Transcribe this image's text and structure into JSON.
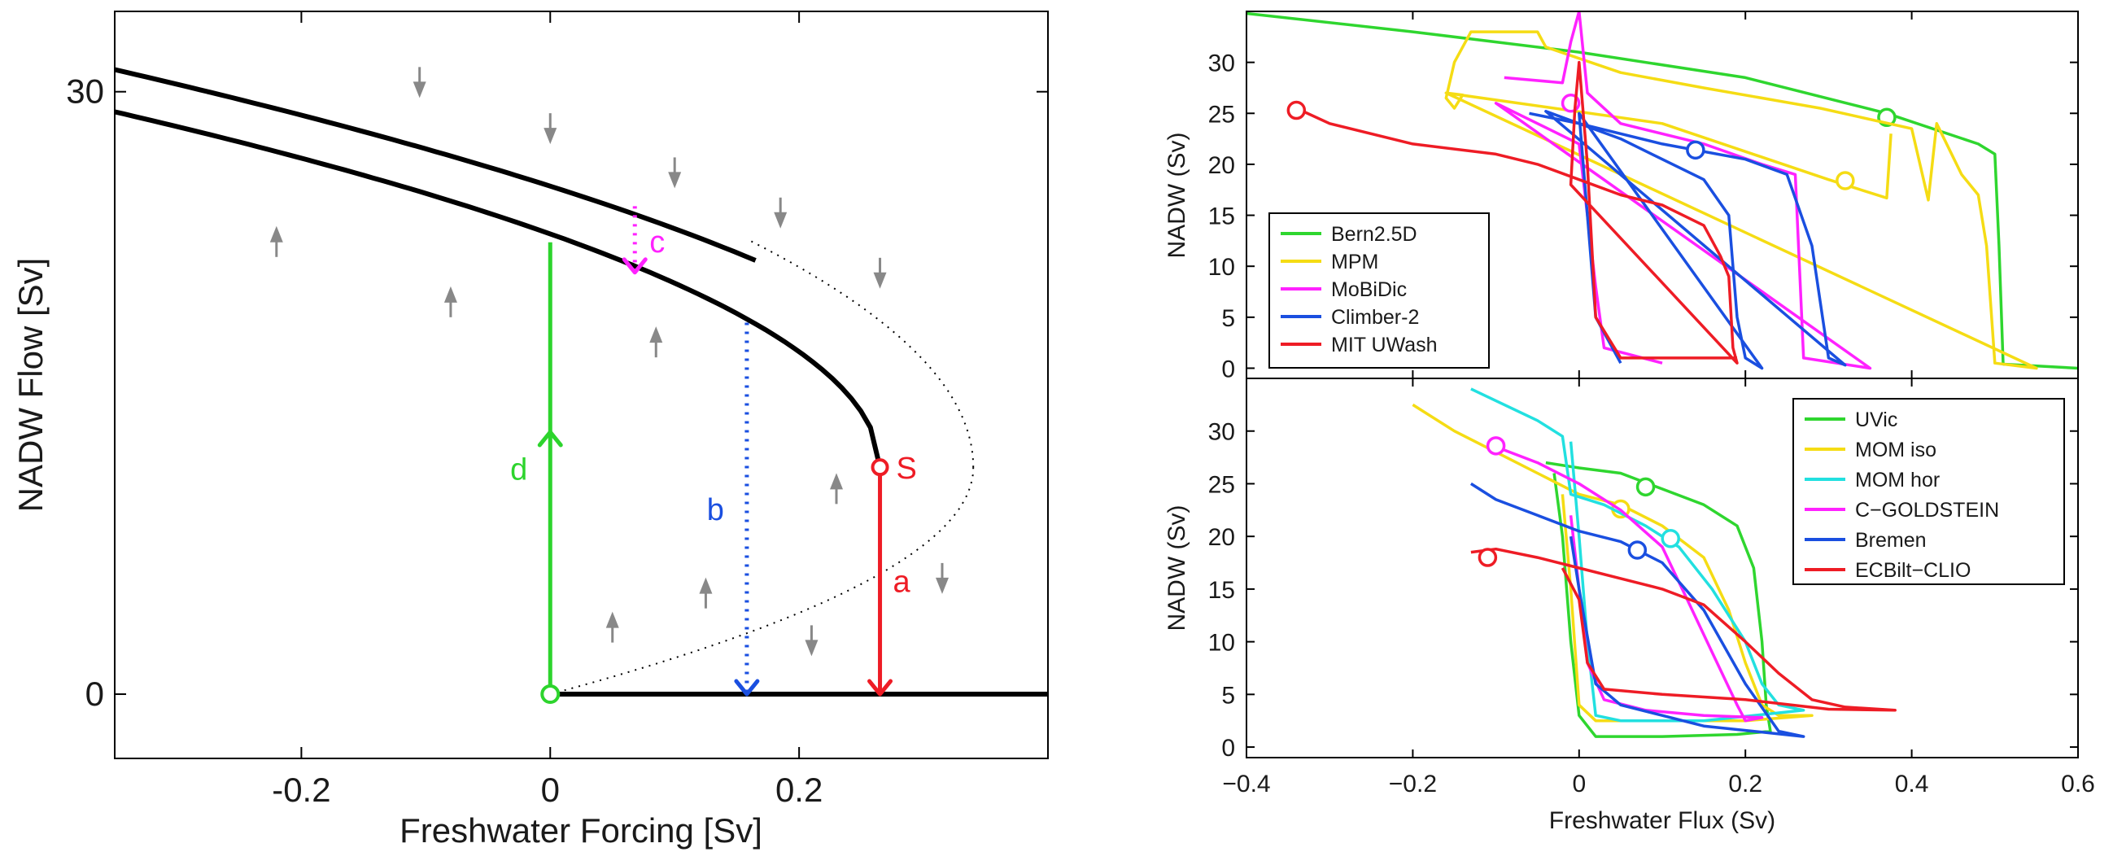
{
  "chart_data": [
    {
      "type": "line",
      "xlabel": "Freshwater Forcing [Sv]",
      "ylabel": "NADW Flow [Sv]",
      "xlim": [
        -0.35,
        0.4
      ],
      "ylim": [
        -3.2,
        34
      ],
      "xticks": [
        -0.2,
        0,
        0.2
      ],
      "xticklabels": [
        "-0.2",
        "0",
        "0.2"
      ],
      "yticks": [
        0,
        30
      ],
      "yticklabels": [
        "0",
        "30"
      ],
      "stable_upper_branch": {
        "x_start": -0.35,
        "x_end": 0.265,
        "y_at_x_start": 29,
        "y_at_saddle": 11.3
      },
      "stable_lower_branch": {
        "x_start": 0.0,
        "x_end": 0.4,
        "y": 0
      },
      "unstable_branch": {
        "from": [
          0.0,
          0
        ],
        "turning_point": [
          0.34,
          11.3
        ],
        "style": "dotted"
      },
      "upper_offset_branch": {
        "x_start": -0.35,
        "x_end": 0.165,
        "y_at_x_start": 31.1,
        "y_at_x_end": 21.6
      },
      "saddle_point": {
        "label": "S",
        "x": 0.265,
        "y": 11.3,
        "color": "#ee1c25"
      },
      "origin_point": {
        "x": 0.0,
        "y": 0,
        "color": "#2dd42d"
      },
      "transitions": [
        {
          "label": "a",
          "x": 0.265,
          "from": 11.3,
          "to": 0,
          "style": "solid",
          "color": "#ee1c25"
        },
        {
          "label": "b",
          "x": 0.158,
          "from": 18.5,
          "to": 0,
          "style": "dotted",
          "color": "#1a4fe0"
        },
        {
          "label": "c",
          "x": 0.068,
          "from": 24.3,
          "to": 21.0,
          "style": "dotted",
          "color": "#ff22ff"
        },
        {
          "label": "d",
          "x": 0.0,
          "from": 0,
          "to": 22.5,
          "style": "solid",
          "color": "#2dd42d"
        }
      ],
      "grey_arrows": [
        {
          "x": -0.105,
          "y": 30.5,
          "dir": "down"
        },
        {
          "x": 0.0,
          "y": 28.2,
          "dir": "down"
        },
        {
          "x": 0.1,
          "y": 26.0,
          "dir": "down"
        },
        {
          "x": 0.185,
          "y": 24.0,
          "dir": "down"
        },
        {
          "x": 0.265,
          "y": 21.0,
          "dir": "down"
        },
        {
          "x": 0.315,
          "y": 5.8,
          "dir": "down"
        },
        {
          "x": 0.21,
          "y": 2.7,
          "dir": "down"
        },
        {
          "x": -0.22,
          "y": 22.5,
          "dir": "up"
        },
        {
          "x": -0.08,
          "y": 19.5,
          "dir": "up"
        },
        {
          "x": 0.085,
          "y": 17.5,
          "dir": "up"
        },
        {
          "x": 0.23,
          "y": 10.2,
          "dir": "up"
        },
        {
          "x": 0.125,
          "y": 5.0,
          "dir": "up"
        },
        {
          "x": 0.05,
          "y": 3.3,
          "dir": "up"
        }
      ]
    },
    {
      "type": "line",
      "xlabel": "",
      "ylabel": "NADW (Sv)",
      "xlim": [
        -0.4,
        0.6
      ],
      "ylim": [
        -1,
        35
      ],
      "xticks": [
        -0.4,
        -0.2,
        0,
        0.2,
        0.4,
        0.6
      ],
      "yticks": [
        0,
        5,
        10,
        15,
        20,
        25,
        30
      ],
      "yticklabels": [
        "0",
        "5",
        "10",
        "15",
        "20",
        "25",
        "30"
      ],
      "legend_position": "bottom-left",
      "series": [
        {
          "name": "Bern2.5D",
          "color": "#2fd62f",
          "points": [
            [
              -0.4,
              34.8
            ],
            [
              -0.2,
              33
            ],
            [
              0,
              31
            ],
            [
              0.2,
              28.5
            ],
            [
              0.37,
              25
            ],
            [
              0.48,
              22
            ],
            [
              0.5,
              21
            ],
            [
              0.505,
              12
            ],
            [
              0.51,
              0.4
            ],
            [
              0.6,
              0
            ]
          ],
          "marker": [
            0.37,
            24.6
          ]
        },
        {
          "name": "MPM",
          "color": "#f5dc14",
          "points": [
            [
              -0.16,
              27
            ],
            [
              -0.14,
              26.8
            ],
            [
              -0.15,
              25.5
            ],
            [
              -0.16,
              26.5
            ],
            [
              -0.15,
              30
            ],
            [
              -0.13,
              33
            ],
            [
              -0.05,
              33
            ],
            [
              -0.04,
              31.5
            ],
            [
              0.05,
              29
            ],
            [
              0.15,
              27.5
            ],
            [
              0.29,
              25.5
            ],
            [
              0.4,
              23.5
            ],
            [
              0.42,
              16.5
            ],
            [
              0.43,
              24
            ],
            [
              0.46,
              19
            ],
            [
              0.48,
              17
            ],
            [
              0.49,
              12
            ],
            [
              0.5,
              0.5
            ],
            [
              0.55,
              0
            ],
            [
              -0.16,
              27
            ],
            [
              0.1,
              24
            ],
            [
              0.3,
              18.5
            ],
            [
              0.37,
              16.7
            ],
            [
              0.375,
              23
            ]
          ],
          "marker": [
            0.32,
            18.4
          ]
        },
        {
          "name": "MoBiDic",
          "color": "#ff22ff",
          "points": [
            [
              -0.09,
              28.5
            ],
            [
              -0.02,
              28
            ],
            [
              -0.01,
              32
            ],
            [
              0,
              35
            ],
            [
              0.01,
              27
            ],
            [
              0.05,
              24
            ],
            [
              0.15,
              22
            ],
            [
              0.22,
              20
            ],
            [
              0.26,
              19
            ],
            [
              0.265,
              10
            ],
            [
              0.27,
              1
            ],
            [
              0.35,
              0
            ],
            [
              -0.1,
              26
            ],
            [
              -0.05,
              24
            ],
            [
              0,
              22
            ],
            [
              0.02,
              8
            ],
            [
              0.03,
              2
            ],
            [
              0.1,
              0.5
            ]
          ],
          "marker": [
            -0.01,
            26
          ]
        },
        {
          "name": "Climber-2",
          "color": "#1a4fe0",
          "points": [
            [
              -0.06,
              25
            ],
            [
              0,
              24
            ],
            [
              0.1,
              22
            ],
            [
              0.2,
              20.5
            ],
            [
              0.25,
              19
            ],
            [
              0.28,
              12
            ],
            [
              0.3,
              1
            ],
            [
              0.32,
              0.3
            ],
            [
              -0.04,
              25.2
            ],
            [
              0.05,
              22.5
            ],
            [
              0.1,
              20.5
            ],
            [
              0.15,
              18.5
            ],
            [
              0.18,
              15
            ],
            [
              0.19,
              5
            ],
            [
              0.2,
              1
            ],
            [
              0.22,
              0
            ],
            [
              0,
              25
            ],
            [
              0.01,
              15
            ],
            [
              0.02,
              5
            ],
            [
              0.05,
              0.5
            ]
          ],
          "marker": [
            0.14,
            21.4
          ]
        },
        {
          "name": "MIT UWash",
          "color": "#ee1c25",
          "points": [
            [
              -0.34,
              25.5
            ],
            [
              -0.3,
              24
            ],
            [
              -0.2,
              22
            ],
            [
              -0.1,
              21
            ],
            [
              -0.05,
              20
            ],
            [
              0,
              18.5
            ],
            [
              0.05,
              17
            ],
            [
              0.1,
              16
            ],
            [
              0.15,
              14
            ],
            [
              0.17,
              11
            ],
            [
              0.18,
              9
            ],
            [
              0.185,
              2
            ],
            [
              0.19,
              0.5
            ],
            [
              -0.01,
              18
            ],
            [
              -0.005,
              25.5
            ],
            [
              0,
              30
            ],
            [
              0.01,
              20
            ],
            [
              0.02,
              5
            ],
            [
              0.05,
              1
            ],
            [
              0.19,
              1
            ]
          ],
          "marker": [
            -0.34,
            25.3
          ]
        }
      ]
    },
    {
      "type": "line",
      "xlabel": "Freshwater Flux (Sv)",
      "ylabel": "NADW (Sv)",
      "xlim": [
        -0.4,
        0.6
      ],
      "ylim": [
        -1,
        35
      ],
      "xticks": [
        -0.4,
        -0.2,
        0,
        0.2,
        0.4,
        0.6
      ],
      "xticklabels": [
        "−0.4",
        "−0.2",
        "0",
        "0.2",
        "0.4",
        "0.6"
      ],
      "yticks": [
        0,
        5,
        10,
        15,
        20,
        25,
        30
      ],
      "yticklabels": [
        "0",
        "5",
        "10",
        "15",
        "20",
        "25",
        "30"
      ],
      "legend_position": "top-right",
      "series": [
        {
          "name": "UVic",
          "color": "#2fd62f",
          "points": [
            [
              -0.04,
              27
            ],
            [
              0,
              26.5
            ],
            [
              0.05,
              26
            ],
            [
              0.1,
              24.5
            ],
            [
              0.15,
              23
            ],
            [
              0.19,
              21
            ],
            [
              0.21,
              17
            ],
            [
              0.22,
              10
            ],
            [
              0.225,
              4
            ],
            [
              0.23,
              1.5
            ],
            [
              0.19,
              1.2
            ],
            [
              0.1,
              1
            ],
            [
              0.02,
              1
            ],
            [
              0,
              3
            ],
            [
              -0.01,
              10
            ],
            [
              -0.02,
              20
            ],
            [
              -0.03,
              26
            ]
          ],
          "marker": [
            0.08,
            24.7
          ]
        },
        {
          "name": "MOM iso",
          "color": "#f5dc14",
          "points": [
            [
              -0.2,
              32.5
            ],
            [
              -0.15,
              30
            ],
            [
              -0.1,
              28
            ],
            [
              -0.05,
              26
            ],
            [
              0,
              24
            ],
            [
              0.05,
              23
            ],
            [
              0.1,
              21
            ],
            [
              0.15,
              18
            ],
            [
              0.18,
              13
            ],
            [
              0.2,
              8
            ],
            [
              0.22,
              4
            ],
            [
              0.24,
              3
            ],
            [
              0.28,
              3
            ],
            [
              0.2,
              2.5
            ],
            [
              0.1,
              2.5
            ],
            [
              0.02,
              2.5
            ],
            [
              0,
              4
            ],
            [
              -0.01,
              15
            ],
            [
              -0.02,
              24
            ]
          ],
          "marker": [
            0.05,
            22.6
          ]
        },
        {
          "name": "MOM hor",
          "color": "#22e0e0",
          "points": [
            [
              -0.13,
              34
            ],
            [
              -0.05,
              31
            ],
            [
              -0.02,
              29.5
            ],
            [
              -0.01,
              24
            ],
            [
              0.03,
              23
            ],
            [
              0.08,
              21
            ],
            [
              0.12,
              19
            ],
            [
              0.16,
              15
            ],
            [
              0.2,
              10
            ],
            [
              0.22,
              6
            ],
            [
              0.24,
              4
            ],
            [
              0.27,
              3.5
            ],
            [
              0.15,
              2.5
            ],
            [
              0.05,
              2.5
            ],
            [
              0.02,
              3
            ],
            [
              0.01,
              10
            ],
            [
              0,
              20
            ],
            [
              -0.01,
              29
            ]
          ],
          "marker": [
            0.11,
            19.8
          ]
        },
        {
          "name": "C−GOLDSTEIN",
          "color": "#ff22ff",
          "points": [
            [
              -0.1,
              28.5
            ],
            [
              -0.05,
              27
            ],
            [
              0,
              25
            ],
            [
              0.05,
              22.5
            ],
            [
              0.1,
              19
            ],
            [
              0.13,
              14
            ],
            [
              0.16,
              9
            ],
            [
              0.19,
              4
            ],
            [
              0.2,
              2.5
            ],
            [
              0.22,
              2.8
            ],
            [
              0.15,
              3
            ],
            [
              0.08,
              3.5
            ],
            [
              0.03,
              4.5
            ],
            [
              0.01,
              8
            ],
            [
              0,
              15
            ],
            [
              -0.01,
              22
            ]
          ],
          "marker": [
            -0.1,
            28.6
          ]
        },
        {
          "name": "Bremen",
          "color": "#1a4fe0",
          "points": [
            [
              -0.13,
              25
            ],
            [
              -0.1,
              23.5
            ],
            [
              -0.05,
              22
            ],
            [
              0,
              20.5
            ],
            [
              0.05,
              19.5
            ],
            [
              0.1,
              17.5
            ],
            [
              0.15,
              13
            ],
            [
              0.2,
              6
            ],
            [
              0.24,
              1.5
            ],
            [
              0.27,
              1
            ],
            [
              0.15,
              2
            ],
            [
              0.1,
              3
            ],
            [
              0.05,
              4
            ],
            [
              0.02,
              6
            ],
            [
              0,
              15
            ],
            [
              -0.01,
              20
            ]
          ],
          "marker": [
            0.07,
            18.7
          ]
        },
        {
          "name": "ECBilt−CLIO",
          "color": "#ee1c25",
          "points": [
            [
              -0.13,
              18.5
            ],
            [
              -0.1,
              18.8
            ],
            [
              -0.05,
              18
            ],
            [
              0,
              17
            ],
            [
              0.05,
              16
            ],
            [
              0.1,
              15
            ],
            [
              0.15,
              13.5
            ],
            [
              0.2,
              10
            ],
            [
              0.24,
              7
            ],
            [
              0.28,
              4.5
            ],
            [
              0.32,
              3.8
            ],
            [
              0.38,
              3.5
            ],
            [
              0.3,
              3.6
            ],
            [
              0.2,
              4.5
            ],
            [
              0.1,
              5
            ],
            [
              0.03,
              5.5
            ],
            [
              0.01,
              8
            ],
            [
              0,
              14
            ],
            [
              -0.02,
              17
            ]
          ],
          "marker": [
            -0.11,
            18
          ]
        }
      ]
    }
  ]
}
